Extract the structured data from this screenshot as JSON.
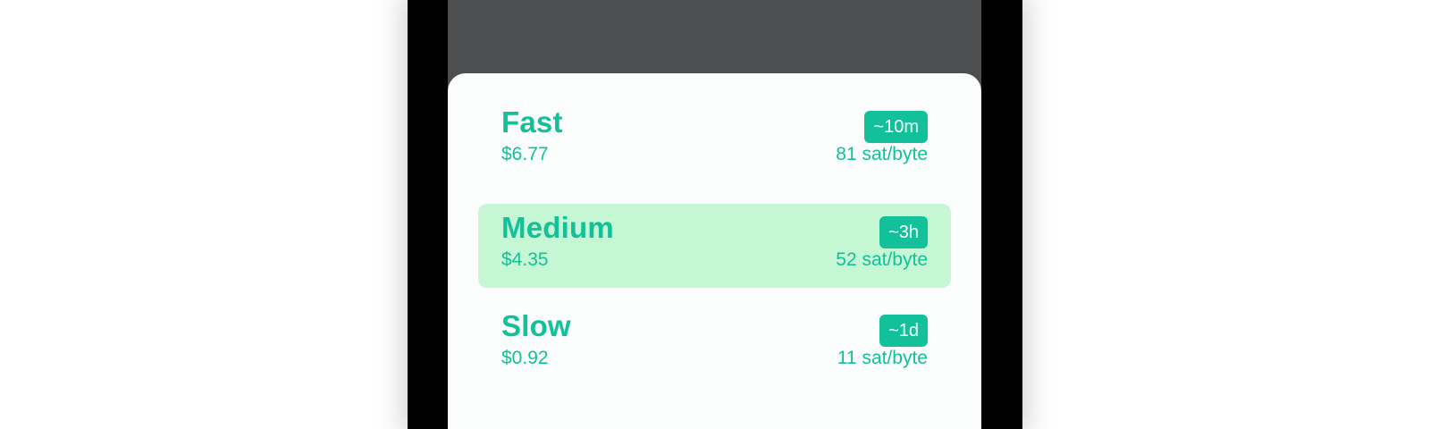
{
  "fee_options": [
    {
      "name": "Fast",
      "price": "$6.77",
      "time": "~10m",
      "rate": "81 sat/byte",
      "selected": false
    },
    {
      "name": "Medium",
      "price": "$4.35",
      "time": "~3h",
      "rate": "52 sat/byte",
      "selected": true
    },
    {
      "name": "Slow",
      "price": "$0.92",
      "time": "~1d",
      "rate": "11 sat/byte",
      "selected": false
    }
  ],
  "colors": {
    "accent": "#12c19a",
    "selected_background": "#c6f7d5",
    "overlay": "#4d4e50",
    "sheet": "#fafdfb"
  }
}
